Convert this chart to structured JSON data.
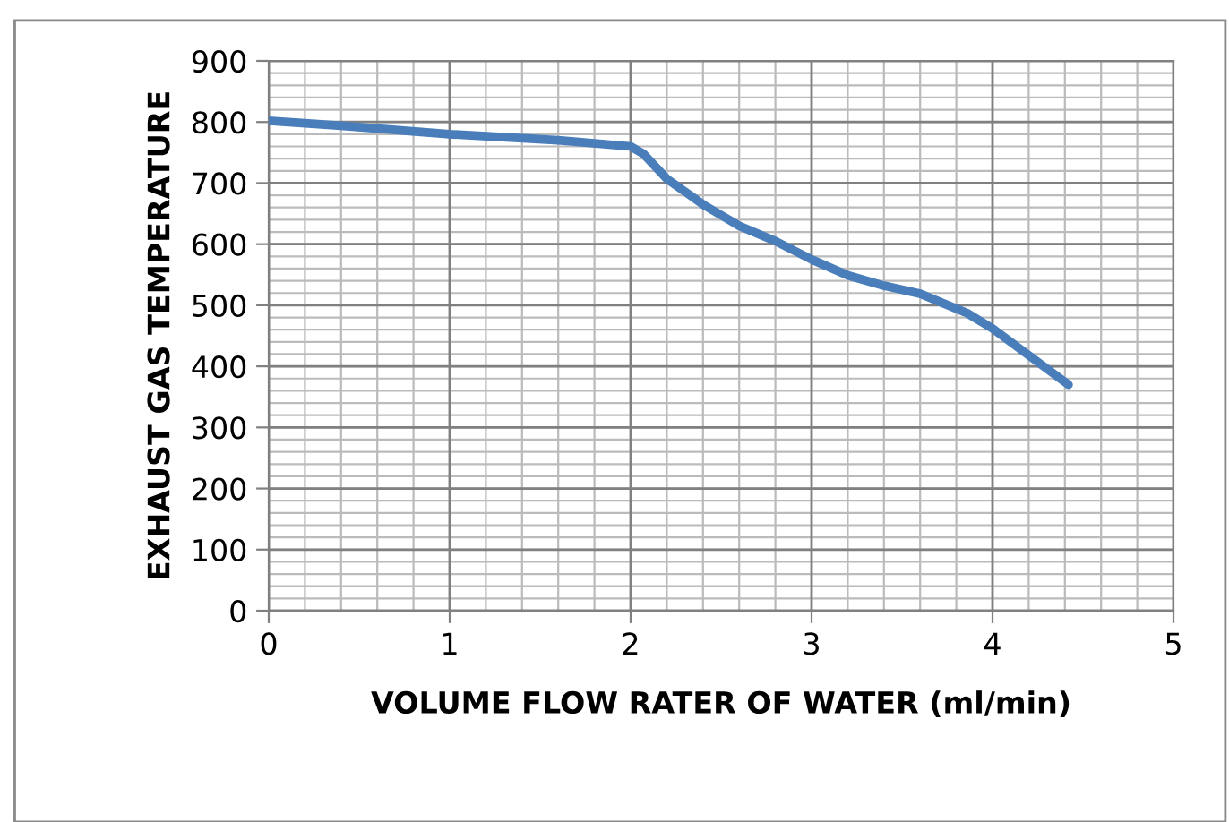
{
  "chart_data": {
    "type": "line",
    "xlabel": "VOLUME FLOW RATER OF WATER (ml/min)",
    "ylabel": "EXHAUST GAS TEMPERATURE",
    "series": [
      {
        "color": "#4a7ebb",
        "x": [
          0,
          0.4,
          1,
          1.6,
          2,
          2.07,
          2.2,
          2.4,
          2.6,
          2.8,
          3,
          3.2,
          3.4,
          3.6,
          3.86,
          4,
          4.42
        ],
        "values": [
          802,
          794,
          780,
          770,
          760,
          748,
          707,
          665,
          630,
          605,
          575,
          549,
          532,
          519,
          487,
          462,
          370
        ]
      }
    ],
    "xlim": [
      0,
      5
    ],
    "ylim": [
      0,
      900
    ],
    "xticks": [
      0,
      1,
      2,
      3,
      4,
      5
    ],
    "yticks": [
      0,
      100,
      200,
      300,
      400,
      500,
      600,
      700,
      800,
      900
    ],
    "grid": true,
    "legend": false,
    "marker": "none",
    "line_style": "solid"
  }
}
